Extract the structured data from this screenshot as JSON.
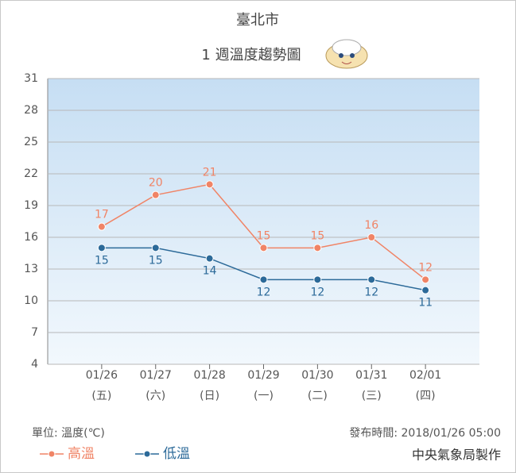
{
  "chart_data": {
    "type": "line",
    "title": "臺北市",
    "subtitle": "1 週溫度趨勢圖",
    "categories": [
      "01/26",
      "01/27",
      "01/28",
      "01/29",
      "01/30",
      "01/31",
      "02/01"
    ],
    "category_sublabels": [
      "(五)",
      "(六)",
      "(日)",
      "(一)",
      "(二)",
      "(三)",
      "(四)"
    ],
    "series": [
      {
        "name": "高溫",
        "color": "#f08466",
        "values": [
          17,
          20,
          21,
          15,
          15,
          16,
          12
        ]
      },
      {
        "name": "低溫",
        "color": "#2c6a99",
        "values": [
          15,
          15,
          14,
          12,
          12,
          12,
          11
        ]
      }
    ],
    "ylim": [
      4,
      31
    ],
    "yticks": [
      4,
      7,
      10,
      13,
      16,
      19,
      22,
      25,
      28,
      31
    ],
    "grid": true,
    "unit_label": "單位: 溫度(℃)",
    "issue_time": "發布時間: 2018/01/26 05:00",
    "source": "中央氣象局製作"
  }
}
